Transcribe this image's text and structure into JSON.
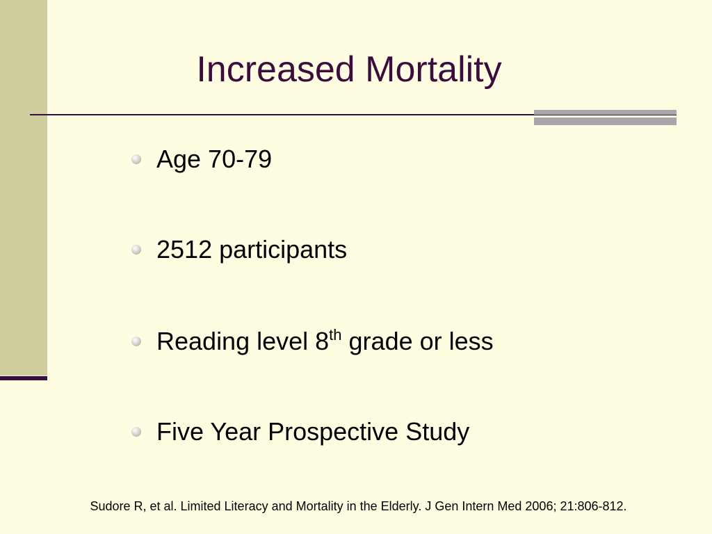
{
  "slide": {
    "title": "Increased Mortality",
    "bullets": [
      {
        "text": "Age 70-79"
      },
      {
        "text": "2512 participants"
      },
      {
        "pre": "Reading level 8",
        "sup": "th",
        "post": " grade or less"
      },
      {
        "text": "Five Year Prospective Study"
      }
    ],
    "citation": "Sudore R, et al. Limited Literacy and Mortality in the Elderly. J Gen Intern Med 2006; 21:806-812."
  },
  "colors": {
    "background": "#FFFDE1",
    "side_band": "#CFCC9E",
    "title_text": "#3B0C3E",
    "rule": "#3B0C3E",
    "rule_accent": "#A7A6AB",
    "body_text": "#000000"
  }
}
